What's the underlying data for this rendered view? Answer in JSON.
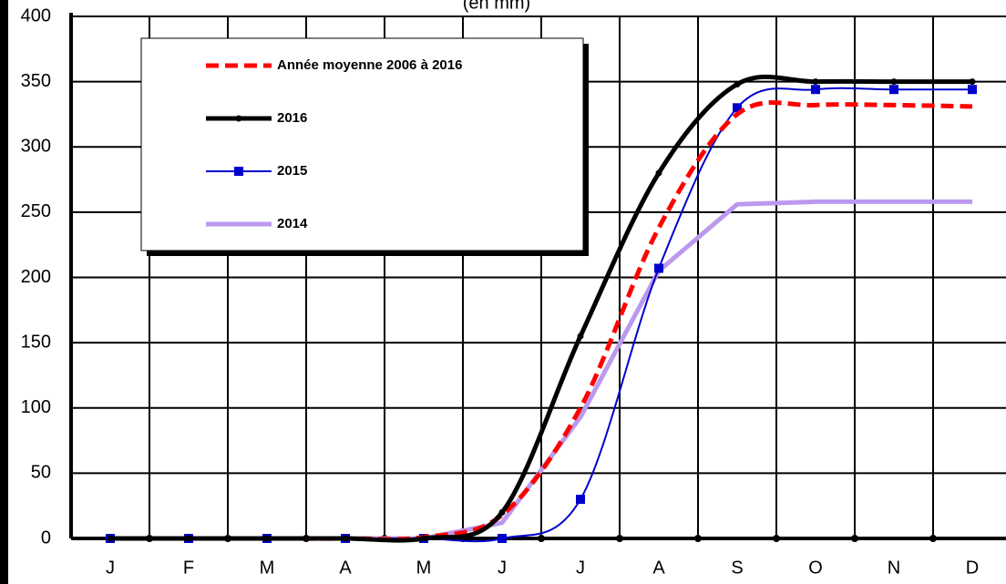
{
  "chart_data": {
    "type": "line",
    "title": "(en mm)",
    "categories": [
      "J",
      "F",
      "M",
      "A",
      "M",
      "J",
      "J",
      "A",
      "S",
      "O",
      "N",
      "D"
    ],
    "series": [
      {
        "name": "Année moyenne 2006 à 2016",
        "color": "#ff0000",
        "dash": true,
        "marker": "none",
        "width": 5,
        "smooth": true,
        "values": [
          0,
          0,
          0,
          0,
          1,
          18,
          100,
          238,
          325,
          332,
          332,
          331
        ]
      },
      {
        "name": "2016",
        "color": "#000000",
        "dash": false,
        "marker": "dot",
        "width": 5,
        "smooth": true,
        "values": [
          0,
          0,
          0,
          0,
          0,
          20,
          155,
          280,
          348,
          350,
          350,
          350
        ]
      },
      {
        "name": "2015",
        "color": "#0000cc",
        "dash": false,
        "marker": "square",
        "width": 2,
        "smooth": true,
        "values": [
          0,
          0,
          0,
          0,
          0,
          0,
          30,
          207,
          330,
          344,
          344,
          344
        ]
      },
      {
        "name": "2014",
        "color": "#bb99ee",
        "dash": false,
        "marker": "none",
        "width": 5,
        "smooth": false,
        "values": [
          0,
          0,
          0,
          0,
          0,
          12,
          93,
          205,
          256,
          258,
          258,
          258
        ]
      }
    ],
    "ylim": [
      0,
      400
    ],
    "yticks": [
      0,
      50,
      100,
      150,
      200,
      250,
      300,
      350,
      400
    ],
    "grid": true
  }
}
